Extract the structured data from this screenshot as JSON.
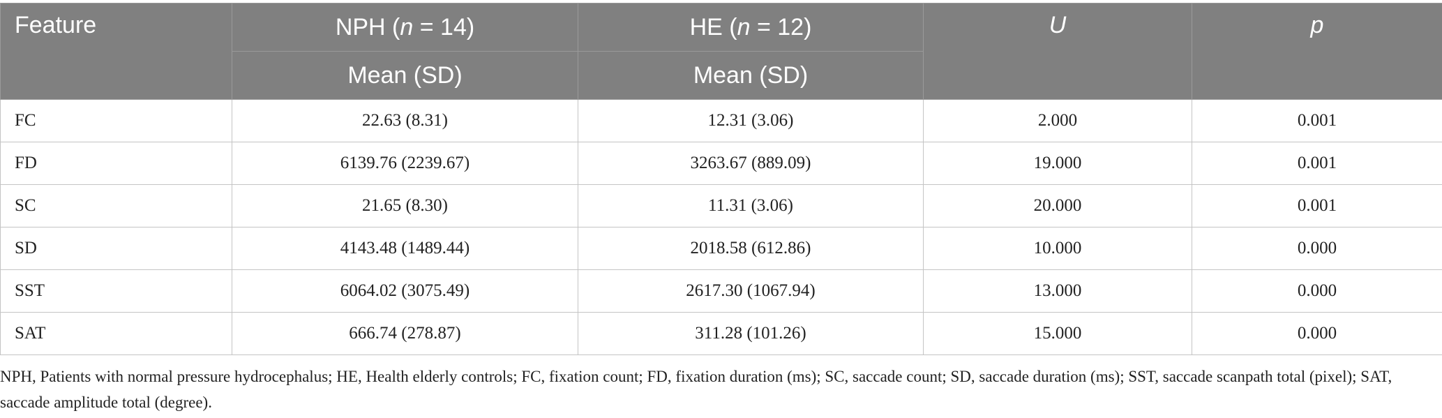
{
  "table": {
    "header": {
      "feature": "Feature",
      "groups": [
        [
          "NPH (",
          "n",
          " = 14)"
        ],
        [
          "HE (",
          "n",
          " = 12)"
        ]
      ],
      "sub": [
        "Mean (SD)",
        "Mean (SD)"
      ],
      "u": "U",
      "p": "p"
    },
    "rows": [
      [
        "FC",
        "22.63 (8.31)",
        "12.31 (3.06)",
        "2.000",
        "0.001"
      ],
      [
        "FD",
        "6139.76 (2239.67)",
        "3263.67 (889.09)",
        "19.000",
        "0.001"
      ],
      [
        "SC",
        "21.65 (8.30)",
        "11.31 (3.06)",
        "20.000",
        "0.001"
      ],
      [
        "SD",
        "4143.48 (1489.44)",
        "2018.58 (612.86)",
        "10.000",
        "0.000"
      ],
      [
        "SST",
        "6064.02 (3075.49)",
        "2617.30 (1067.94)",
        "13.000",
        "0.000"
      ],
      [
        "SAT",
        "666.74 (278.87)",
        "311.28 (101.26)",
        "15.000",
        "0.000"
      ]
    ],
    "note": "NPH, Patients with normal pressure hydrocephalus; HE, Health elderly controls; FC, fixation count; FD, fixation duration (ms); SC, saccade count; SD, saccade duration (ms); SST, saccade scanpath total (pixel); SAT, saccade amplitude total (degree)."
  }
}
